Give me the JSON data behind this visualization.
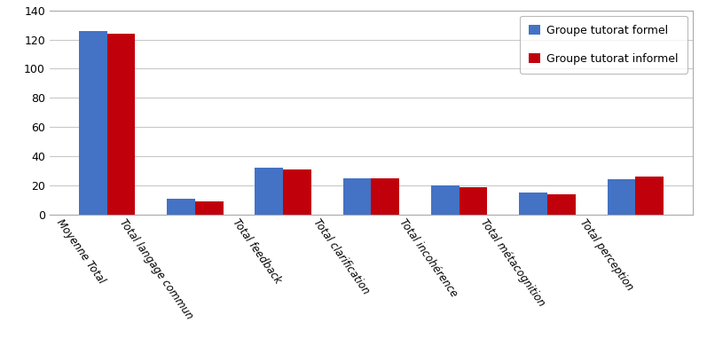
{
  "categories": [
    "Moyenne Total",
    "Total langage commun",
    "Total feedback",
    "Total clarification",
    "Total incohérence",
    "Total métacognition",
    "Total perception"
  ],
  "formel": [
    126,
    11,
    32,
    25,
    20,
    15,
    24
  ],
  "informel": [
    124,
    9,
    31,
    25,
    19,
    14,
    26
  ],
  "color_formel": "#4472C4",
  "color_informel": "#C0000B",
  "legend_formel": "Groupe tutorat formel",
  "legend_informel": "Groupe tutorat informel",
  "ylim": [
    0,
    140
  ],
  "yticks": [
    0,
    20,
    40,
    60,
    80,
    100,
    120,
    140
  ],
  "background_color": "#FFFFFF",
  "grid_color": "#C8C8C8",
  "bar_width": 0.32,
  "label_rotation": -55,
  "label_fontsize": 8.5,
  "tick_fontsize": 9
}
